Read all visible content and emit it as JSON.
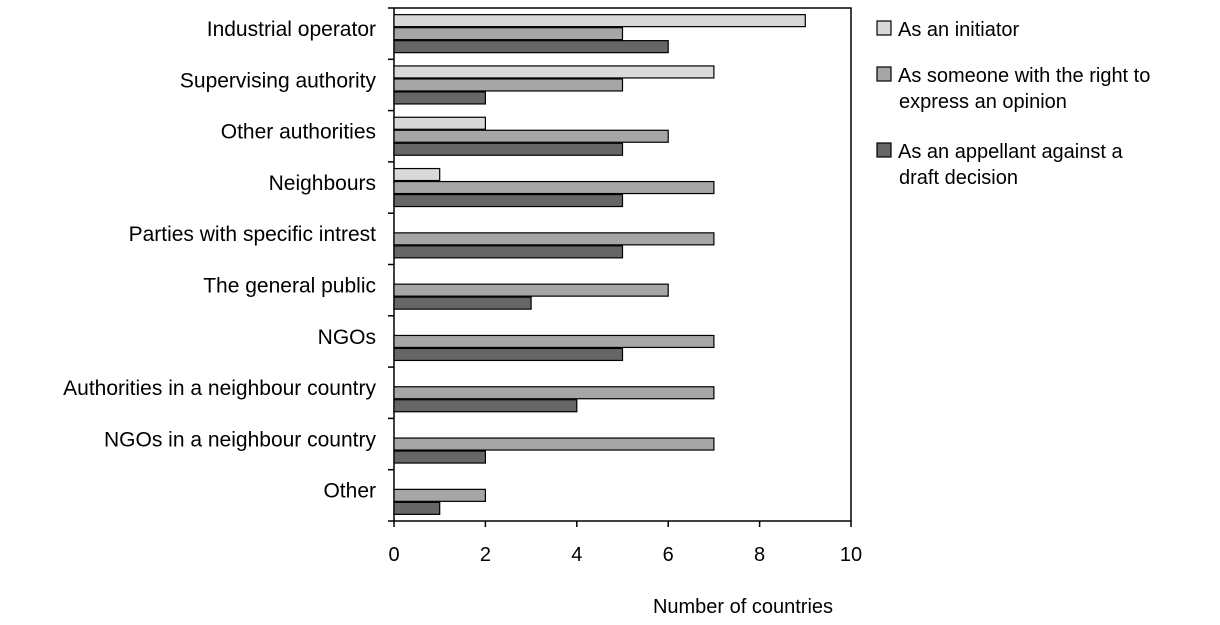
{
  "chart_data": {
    "type": "bar",
    "orientation": "horizontal",
    "title": "",
    "xlabel": "Number of countries",
    "ylabel": "",
    "xlim": [
      0,
      10
    ],
    "xticks": [
      "0",
      "2",
      "4",
      "6",
      "8",
      "10"
    ],
    "grid": false,
    "legend_position": "right",
    "categories": [
      "Industrial operator",
      "Supervising authority",
      "Other authorities",
      "Neighbours",
      "Parties with specific intrest",
      "The general public",
      "NGOs",
      "Authorities in a neighbour country",
      "NGOs in a neighbour country",
      "Other"
    ],
    "series": [
      {
        "name": "As an initiator",
        "color": "#d9d9d9",
        "values": [
          9,
          7,
          2,
          1,
          0,
          0,
          0,
          0,
          0,
          0
        ]
      },
      {
        "name": "As someone with the right to express an opinion",
        "name_lines": [
          "As someone with the right to",
          "express an opinion"
        ],
        "color": "#a6a6a6",
        "values": [
          5,
          5,
          6,
          7,
          7,
          6,
          7,
          7,
          7,
          2
        ]
      },
      {
        "name": "As an appellant against a draft decision",
        "name_lines": [
          "As an appellant against a",
          "draft decision"
        ],
        "color": "#666666",
        "values": [
          6,
          2,
          5,
          5,
          5,
          3,
          5,
          4,
          2,
          1
        ]
      }
    ]
  }
}
